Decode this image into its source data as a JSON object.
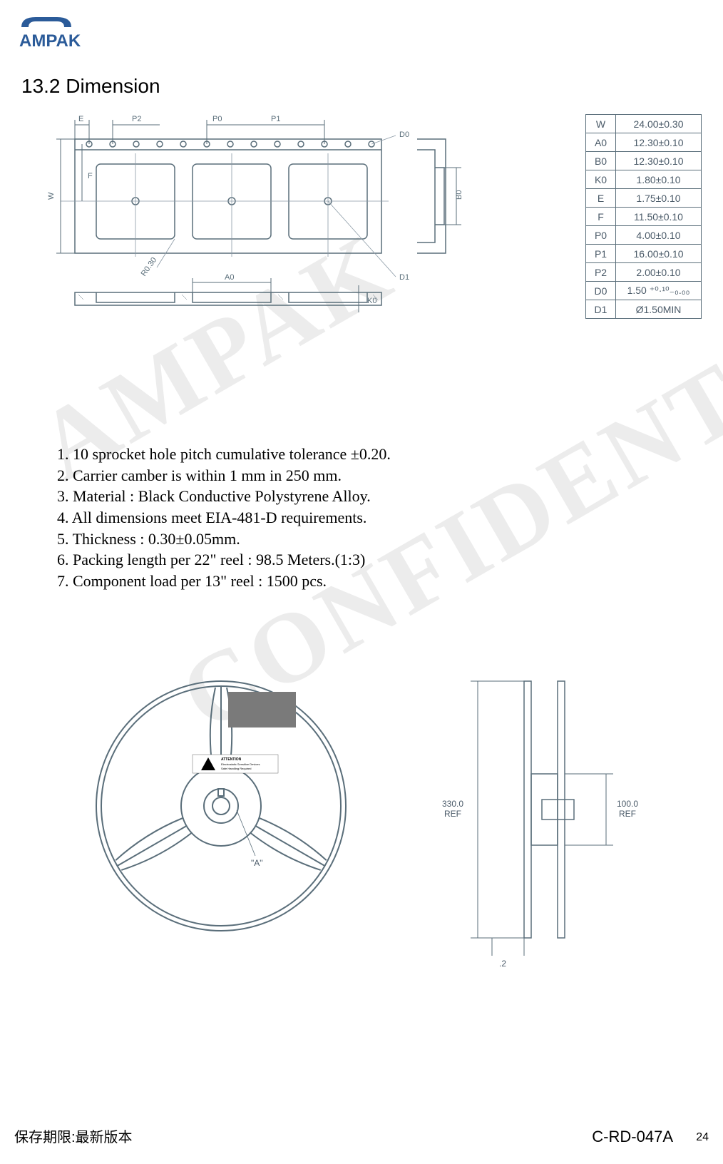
{
  "logo_text": "AMPAK",
  "logo_color": "#2b5b99",
  "section_title": "13.2 Dimension",
  "watermark1": "AMPAK",
  "watermark2": "CONFIDENTIAL",
  "dim_table": {
    "border_color": "#5a6e7a",
    "text_color": "#4a5a68",
    "rows": [
      {
        "k": "W",
        "v": "24.00±0.30"
      },
      {
        "k": "A0",
        "v": "12.30±0.10"
      },
      {
        "k": "B0",
        "v": "12.30±0.10"
      },
      {
        "k": "K0",
        "v": "1.80±0.10"
      },
      {
        "k": "E",
        "v": "1.75±0.10"
      },
      {
        "k": "F",
        "v": "11.50±0.10"
      },
      {
        "k": "P0",
        "v": "4.00±0.10"
      },
      {
        "k": "P1",
        "v": "16.00±0.10"
      },
      {
        "k": "P2",
        "v": "2.00±0.10"
      },
      {
        "k": "D0",
        "v": "1.50 ⁺⁰·¹⁰₋₀.₀₀"
      },
      {
        "k": "D1",
        "v": "Ø1.50MIN"
      }
    ]
  },
  "notes": [
    "1. 10 sprocket hole pitch cumulative tolerance ±0.20.",
    "2. Carrier camber is within 1 mm in 250 mm.",
    "3. Material : Black Conductive Polystyrene Alloy.",
    "4. All dimensions meet EIA-481-D requirements.",
    "5. Thickness : 0.30±0.05mm.",
    "6. Packing length per 22\" reel : 98.5 Meters.(1:3)",
    "7. Component load per 13\" reel : 1500 pcs."
  ],
  "drawing_labels": {
    "E": "E",
    "P2": "P2",
    "P0": "P0",
    "P1": "P1",
    "D0": "D0",
    "F": "F",
    "W": "W",
    "A0": "A0",
    "K0": "K0",
    "D1": "D1",
    "B0": "B0",
    "R": "R0.30"
  },
  "drawing_colors": {
    "stroke": "#5a6e7a",
    "thin": "#8a99a5"
  },
  "reel": {
    "label_A": "\"A\"",
    "esd_title": "ATTENTION",
    "esd_line1": "Electrostatic Sensitive Devices",
    "esd_line2": "Safe Handling Required",
    "diameter_ref": "330.0",
    "diameter_ref_sub": "REF",
    "hub_ref": "100.0",
    "hub_ref_sub": "REF",
    "small_dim": ".2",
    "stroke": "#5a6e7a"
  },
  "footer_left": "保存期限:最新版本",
  "footer_right": "C-RD-047A",
  "page_num": "24"
}
